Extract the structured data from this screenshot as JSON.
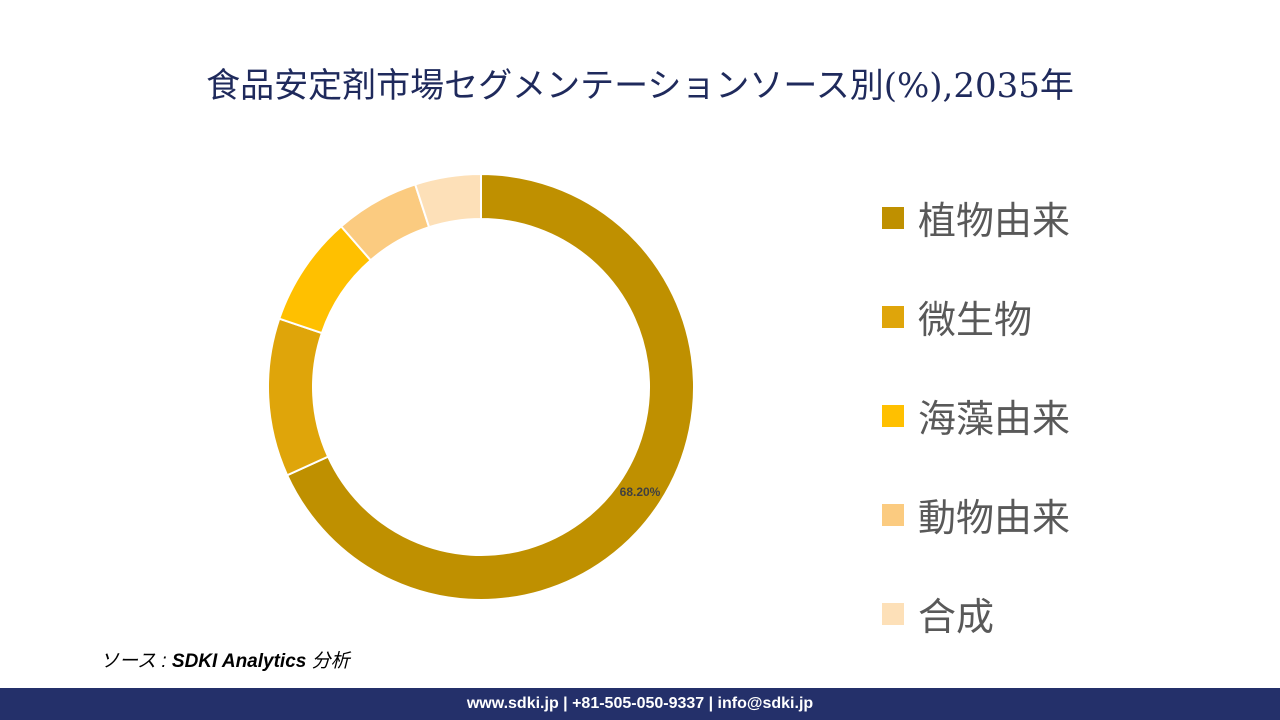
{
  "chart_data": {
    "type": "pie",
    "subtype": "donut",
    "title": "食品安定剤市場セグメンテーションソース別(%),2035年",
    "categories": [
      "植物由来",
      "微生物",
      "海藻由来",
      "動物由来",
      "合成"
    ],
    "values": [
      68.2,
      12.0,
      8.4,
      6.4,
      5.0
    ],
    "colors": [
      "#BF9000",
      "#DFA50A",
      "#FFC000",
      "#FBCB80",
      "#FDE0B8"
    ],
    "data_labels": [
      "68.20%",
      "",
      "",
      "",
      ""
    ],
    "legend_position": "right"
  },
  "source": {
    "prefix": "ソース : ",
    "name": "SDKI Analytics",
    "suffix": " 分析"
  },
  "footer": "www.sdki.jp | +81-505-050-9337 | info@sdki.jp"
}
